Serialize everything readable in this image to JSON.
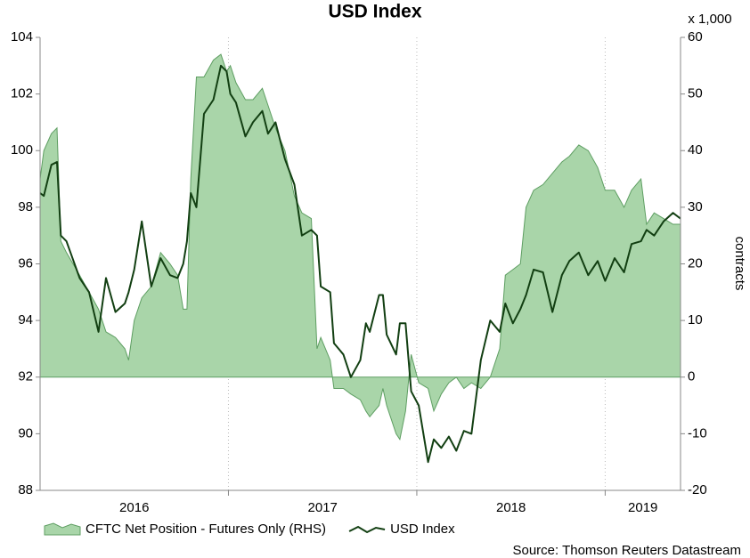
{
  "chart_data": {
    "type": "line",
    "title": "USD Index",
    "y2_unit": "x 1,000",
    "y2_label": "contracts",
    "source": "Source: Thomson Reuters Datastream",
    "x": [
      2016.0,
      2016.02,
      2016.06,
      2016.09,
      2016.11,
      2016.14,
      2016.21,
      2016.26,
      2016.31,
      2016.35,
      2016.4,
      2016.45,
      2016.47,
      2016.5,
      2016.54,
      2016.59,
      2016.64,
      2016.69,
      2016.73,
      2016.76,
      2016.78,
      2016.8,
      2016.83,
      2016.87,
      2016.92,
      2016.96,
      2016.99,
      2017.01,
      2017.04,
      2017.09,
      2017.13,
      2017.18,
      2017.21,
      2017.25,
      2017.3,
      2017.35,
      2017.39,
      2017.44,
      2017.47,
      2017.49,
      2017.54,
      2017.56,
      2017.61,
      2017.65,
      2017.7,
      2017.73,
      2017.75,
      2017.8,
      2017.82,
      2017.84,
      2017.89,
      2017.91,
      2017.94,
      2017.97,
      2018.01,
      2018.06,
      2018.09,
      2018.13,
      2018.17,
      2018.21,
      2018.25,
      2018.29,
      2018.34,
      2018.39,
      2018.44,
      2018.47,
      2018.51,
      2018.55,
      2018.58,
      2018.62,
      2018.67,
      2018.72,
      2018.77,
      2018.81,
      2018.86,
      2018.91,
      2018.96,
      2019.0,
      2019.05,
      2019.1,
      2019.14,
      2019.19,
      2019.22,
      2019.26,
      2019.31,
      2019.36,
      2019.4
    ],
    "series": [
      {
        "name": "CFTC Net Position - Futures Only (RHS)",
        "axis": "y2",
        "kind": "area",
        "color": "#a9d5a9",
        "line_color": "#5e9e62",
        "values": [
          35,
          40,
          43,
          44,
          24,
          22,
          18,
          15,
          12,
          8,
          7,
          5,
          3,
          10,
          14,
          16,
          22,
          20,
          18,
          12,
          12,
          35,
          53,
          53,
          56,
          57,
          54,
          55,
          52,
          49,
          49,
          51,
          48,
          44,
          40,
          32,
          29,
          28,
          5,
          7,
          3,
          -2,
          -2,
          -3,
          -4,
          -6,
          -7,
          -5,
          -2,
          -5,
          -10,
          -11,
          -6,
          4,
          -1,
          -2,
          -6,
          -3,
          -1,
          0,
          -2,
          -1,
          -2,
          0,
          5,
          18,
          19,
          20,
          30,
          33,
          34,
          36,
          38,
          39,
          41,
          40,
          37,
          33,
          33,
          30,
          33,
          35,
          27,
          29,
          28,
          27,
          27
        ]
      },
      {
        "name": "USD Index",
        "axis": "y",
        "kind": "line",
        "color": "#123f12",
        "values": [
          98.5,
          98.4,
          99.5,
          99.6,
          97.0,
          96.8,
          95.5,
          95.0,
          93.6,
          95.5,
          94.3,
          94.6,
          95.0,
          95.8,
          97.5,
          95.2,
          96.2,
          95.6,
          95.5,
          96.0,
          96.8,
          98.5,
          98.0,
          101.3,
          101.8,
          103.0,
          102.8,
          102.0,
          101.7,
          100.5,
          101.0,
          101.4,
          100.6,
          101.0,
          99.7,
          98.8,
          97.0,
          97.2,
          97.0,
          95.2,
          95.0,
          93.2,
          92.8,
          92.0,
          92.6,
          93.9,
          93.6,
          94.9,
          94.9,
          93.5,
          92.8,
          93.9,
          93.9,
          91.5,
          91.0,
          89.0,
          89.8,
          89.5,
          89.9,
          89.4,
          90.1,
          90.0,
          92.6,
          94.0,
          93.6,
          94.6,
          93.9,
          94.4,
          94.9,
          95.8,
          95.7,
          94.3,
          95.6,
          96.1,
          96.4,
          95.6,
          96.1,
          95.4,
          96.2,
          95.7,
          96.7,
          96.8,
          97.2,
          97.0,
          97.5,
          97.8,
          97.6
        ]
      }
    ],
    "xlim": [
      2016.0,
      2019.4
    ],
    "xticks": [
      {
        "value": 2016,
        "label": "2016"
      },
      {
        "value": 2017,
        "label": "2017"
      },
      {
        "value": 2018,
        "label": "2018"
      },
      {
        "value": 2019,
        "label": "2019"
      }
    ],
    "ylim": [
      88,
      104
    ],
    "yticks": [
      88,
      90,
      92,
      94,
      96,
      98,
      100,
      102,
      104
    ],
    "y2lim": [
      -20,
      60
    ],
    "y2ticks": [
      -20,
      -10,
      0,
      10,
      20,
      30,
      40,
      50,
      60
    ],
    "grid": "x",
    "legend": "bottom"
  }
}
